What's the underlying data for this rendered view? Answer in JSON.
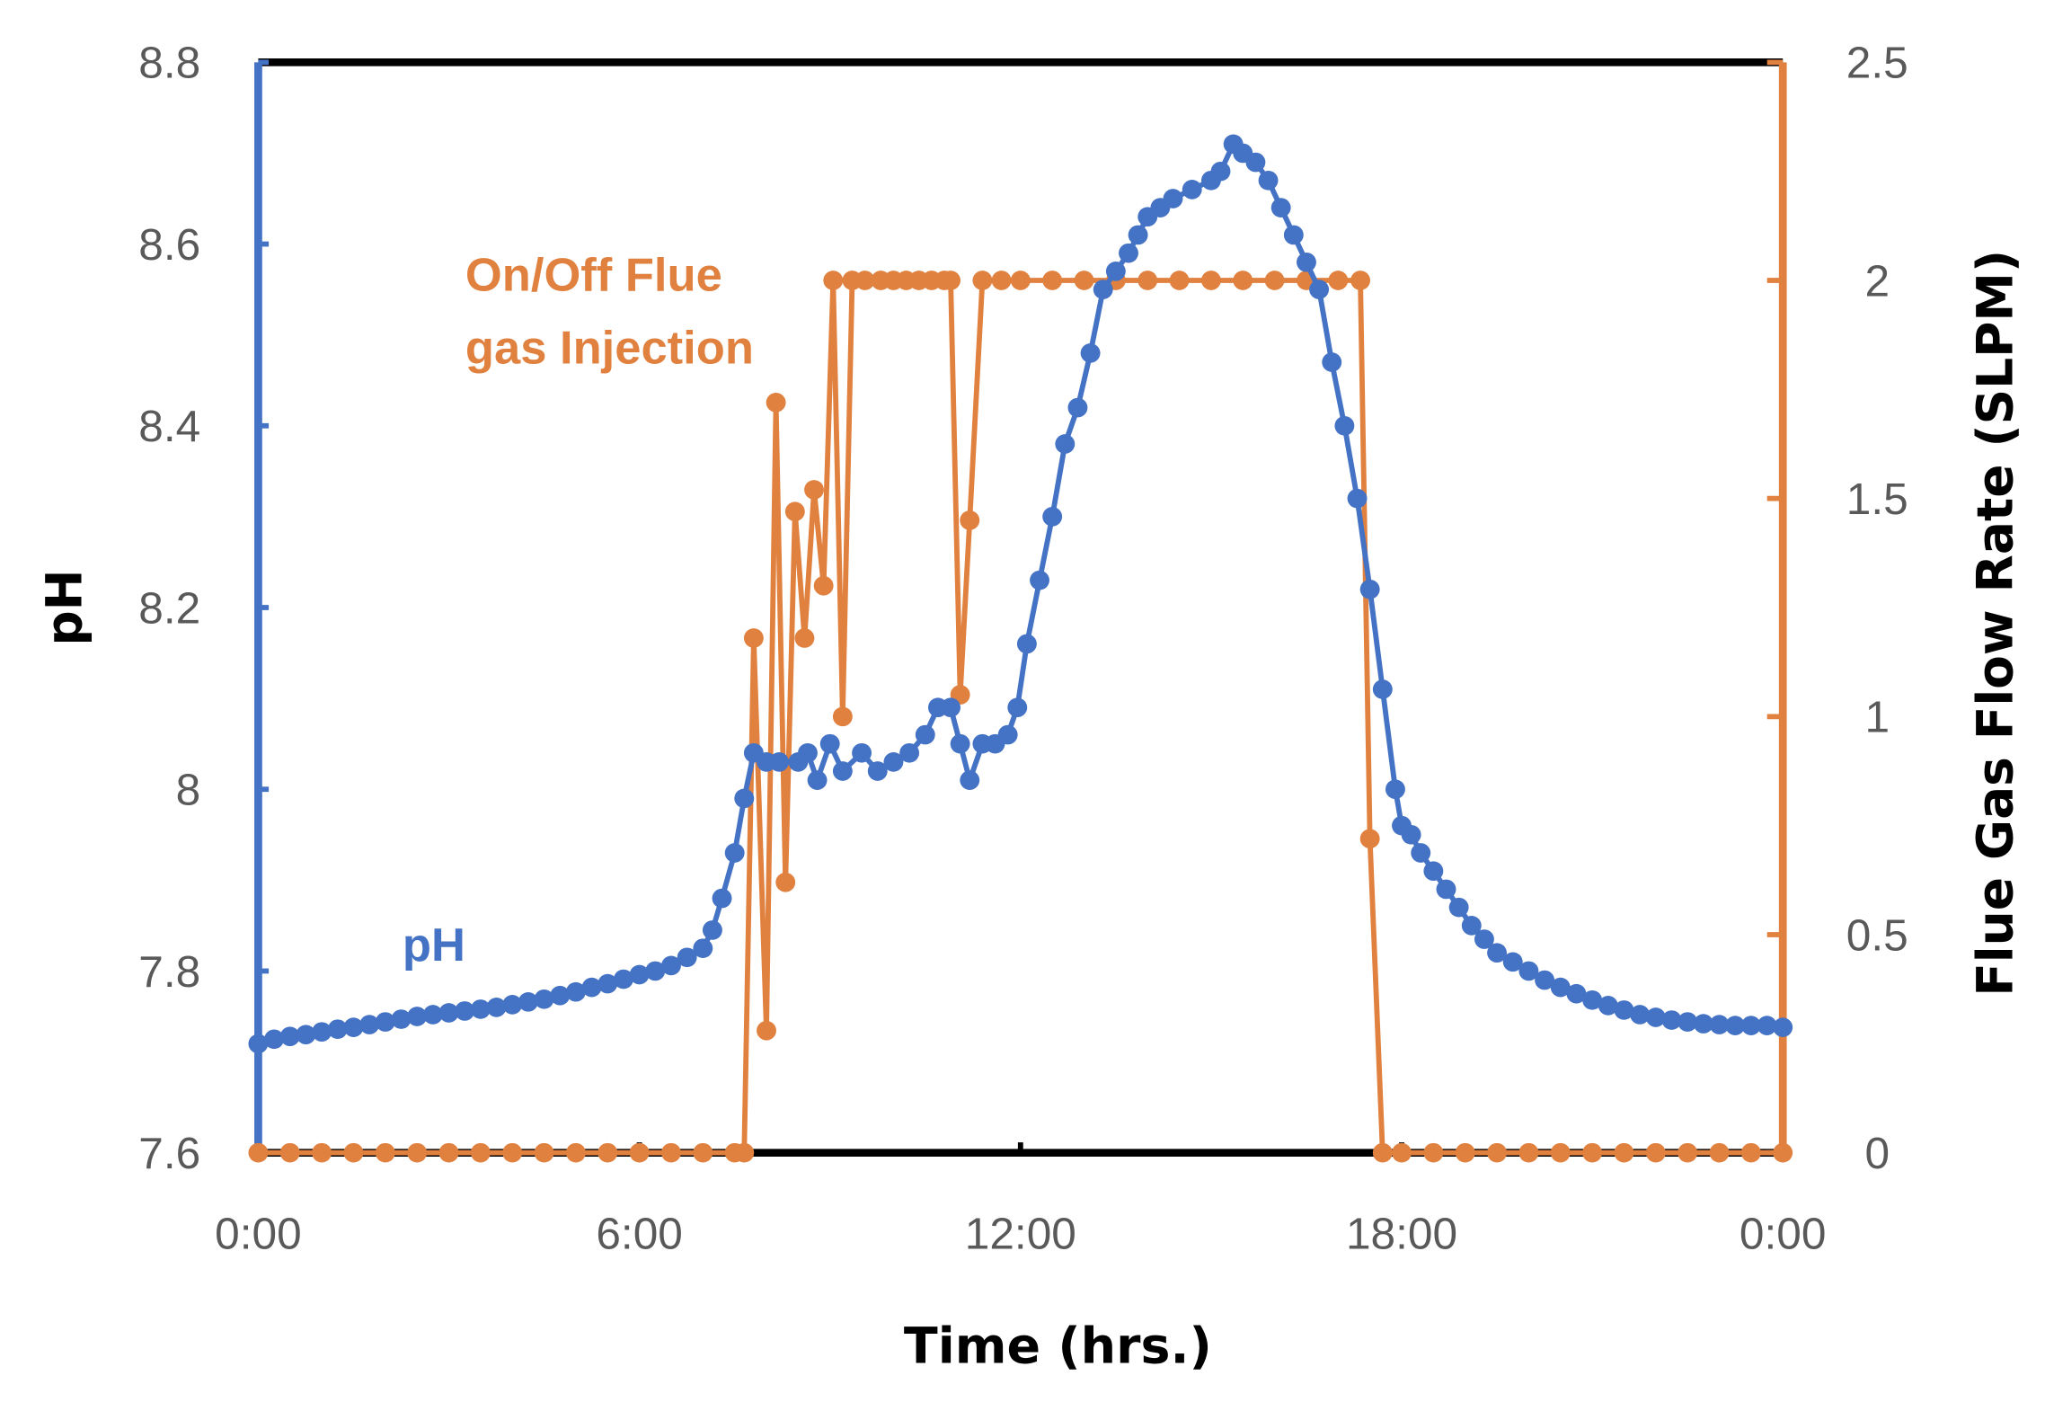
{
  "chart_data": {
    "type": "line",
    "title": "",
    "xlabel": "Time (hrs.)",
    "ylabel": "pH",
    "y2label": "Flue Gas Flow Rate (SLPM)",
    "xlim": [
      0,
      24
    ],
    "ylim": [
      7.6,
      8.8
    ],
    "y2lim": [
      0,
      2.5
    ],
    "x_ticks": [
      0,
      6,
      12,
      18,
      24
    ],
    "x_tick_labels": [
      "0:00",
      "6:00",
      "12:00",
      "18:00",
      "0:00"
    ],
    "y_ticks": [
      7.6,
      7.8,
      8,
      8.2,
      8.4,
      8.6,
      8.8
    ],
    "y_tick_labels": [
      "7.6",
      "7.8",
      "8",
      "8.2",
      "8.4",
      "8.6",
      "8.8"
    ],
    "y2_ticks": [
      0,
      0.5,
      1,
      1.5,
      2,
      2.5
    ],
    "y2_tick_labels": [
      "0",
      "0.5",
      "1",
      "1.5",
      "2",
      "2.5"
    ],
    "grid": false,
    "annotations": {
      "ph_label": "pH",
      "flow_label_line1": "On/Off Flue",
      "flow_label_line2": "gas Injection"
    },
    "colors": {
      "ph": "#4472C4",
      "flow": "#E0813F"
    },
    "series": [
      {
        "name": "pH",
        "axis": "left",
        "x": [
          0,
          0.25,
          0.5,
          0.75,
          1,
          1.25,
          1.5,
          1.75,
          2,
          2.25,
          2.5,
          2.75,
          3,
          3.25,
          3.5,
          3.75,
          4,
          4.25,
          4.5,
          4.75,
          5,
          5.25,
          5.5,
          5.75,
          6,
          6.25,
          6.5,
          6.75,
          7,
          7.15,
          7.3,
          7.5,
          7.65,
          7.8,
          8,
          8.2,
          8.5,
          8.65,
          8.8,
          9,
          9.2,
          9.5,
          9.75,
          10,
          10.25,
          10.5,
          10.7,
          10.9,
          11.05,
          11.2,
          11.4,
          11.6,
          11.8,
          11.95,
          12.1,
          12.3,
          12.5,
          12.7,
          12.9,
          13.1,
          13.3,
          13.5,
          13.7,
          13.85,
          14,
          14.2,
          14.4,
          14.7,
          15,
          15.15,
          15.35,
          15.5,
          15.7,
          15.9,
          16.1,
          16.3,
          16.5,
          16.7,
          16.9,
          17.1,
          17.3,
          17.5,
          17.7,
          17.9,
          18,
          18.15,
          18.3,
          18.5,
          18.7,
          18.9,
          19.1,
          19.3,
          19.5,
          19.75,
          20,
          20.25,
          20.5,
          20.75,
          21,
          21.25,
          21.5,
          21.75,
          22,
          22.25,
          22.5,
          22.75,
          23,
          23.25,
          23.5,
          23.75,
          24
        ],
        "values": [
          7.72,
          7.725,
          7.728,
          7.73,
          7.733,
          7.736,
          7.738,
          7.741,
          7.744,
          7.747,
          7.75,
          7.752,
          7.754,
          7.756,
          7.758,
          7.76,
          7.763,
          7.766,
          7.769,
          7.773,
          7.777,
          7.782,
          7.786,
          7.791,
          7.796,
          7.8,
          7.806,
          7.815,
          7.825,
          7.845,
          7.88,
          7.93,
          7.99,
          8.04,
          8.03,
          8.03,
          8.03,
          8.04,
          8.01,
          8.05,
          8.02,
          8.04,
          8.02,
          8.03,
          8.04,
          8.06,
          8.09,
          8.09,
          8.05,
          8.01,
          8.05,
          8.05,
          8.06,
          8.09,
          8.16,
          8.23,
          8.3,
          8.38,
          8.42,
          8.48,
          8.55,
          8.57,
          8.59,
          8.61,
          8.63,
          8.64,
          8.65,
          8.66,
          8.67,
          8.68,
          8.71,
          8.7,
          8.69,
          8.67,
          8.64,
          8.61,
          8.58,
          8.55,
          8.47,
          8.4,
          8.32,
          8.22,
          8.11,
          8.0,
          7.96,
          7.95,
          7.93,
          7.91,
          7.89,
          7.87,
          7.85,
          7.835,
          7.82,
          7.81,
          7.8,
          7.79,
          7.782,
          7.775,
          7.768,
          7.762,
          7.757,
          7.752,
          7.749,
          7.746,
          7.744,
          7.742,
          7.741,
          7.74,
          7.74,
          7.74,
          7.738
        ]
      },
      {
        "name": "Flue Gas Flow Rate",
        "axis": "right",
        "x": [
          0,
          0.5,
          1,
          1.5,
          2,
          2.5,
          3,
          3.5,
          4,
          4.5,
          5,
          5.5,
          6,
          6.5,
          7,
          7.5,
          7.65,
          7.8,
          8.0,
          8.15,
          8.3,
          8.45,
          8.6,
          8.75,
          8.9,
          9.05,
          9.2,
          9.35,
          9.55,
          9.8,
          10,
          10.2,
          10.4,
          10.6,
          10.8,
          10.9,
          11.05,
          11.2,
          11.4,
          11.7,
          12,
          12.5,
          13,
          13.5,
          14,
          14.5,
          15,
          15.5,
          16,
          16.5,
          17,
          17.35,
          17.5,
          17.7,
          18,
          18.5,
          19,
          19.5,
          20,
          20.5,
          21,
          21.5,
          22,
          22.5,
          23,
          23.5,
          24
        ],
        "values": [
          0,
          0,
          0,
          0,
          0,
          0,
          0,
          0,
          0,
          0,
          0,
          0,
          0,
          0,
          0,
          0,
          0,
          1.18,
          0.28,
          1.72,
          0.62,
          1.47,
          1.18,
          1.52,
          1.3,
          2.0,
          1.0,
          2.0,
          2.0,
          2.0,
          2.0,
          2.0,
          2.0,
          2.0,
          2.0,
          2.0,
          1.05,
          1.45,
          2.0,
          2.0,
          2.0,
          2.0,
          2.0,
          2.0,
          2.0,
          2.0,
          2.0,
          2.0,
          2.0,
          2.0,
          2.0,
          2.0,
          0.72,
          0,
          0,
          0,
          0,
          0,
          0,
          0,
          0,
          0,
          0,
          0,
          0,
          0,
          0
        ]
      }
    ]
  }
}
